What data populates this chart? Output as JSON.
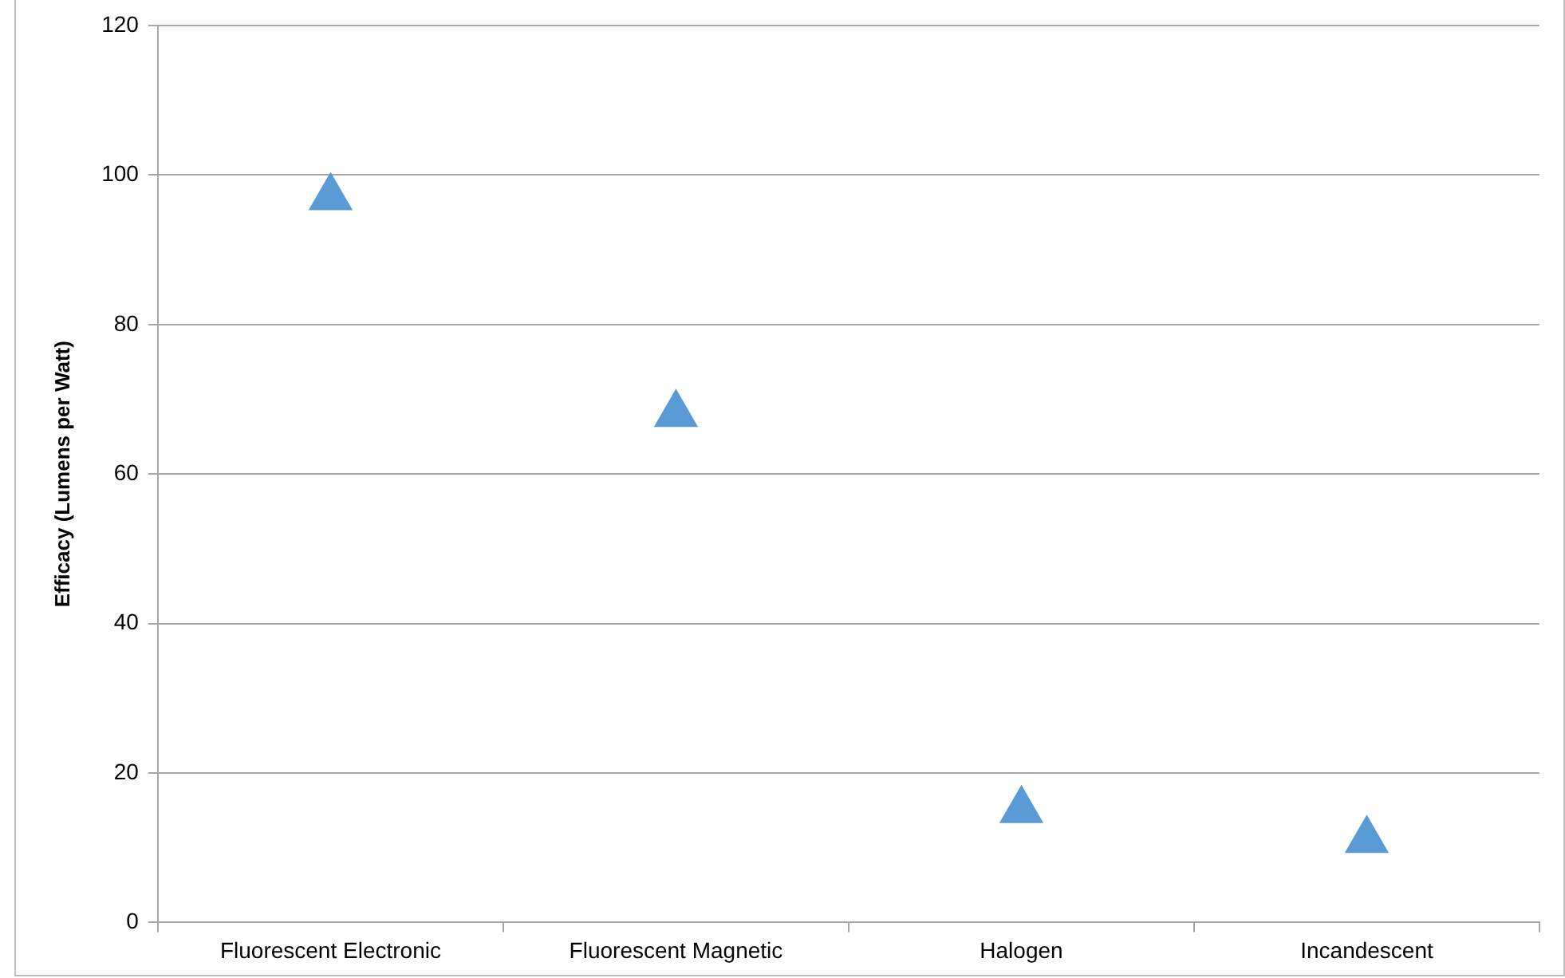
{
  "chart_data": {
    "type": "scatter",
    "ylabel": "Efficacy (Lumens per Watt)",
    "categories": [
      "Fluorescent Electronic",
      "Fluorescent Magnetic",
      "Halogen",
      "Incandescent"
    ],
    "values": [
      97,
      68,
      15,
      11
    ],
    "color": "#5b9bd5",
    "marker": "triangle",
    "ylim": [
      0,
      120
    ],
    "yticks": [
      0,
      20,
      40,
      60,
      80,
      100,
      120
    ],
    "grid": "y",
    "legend": false
  }
}
